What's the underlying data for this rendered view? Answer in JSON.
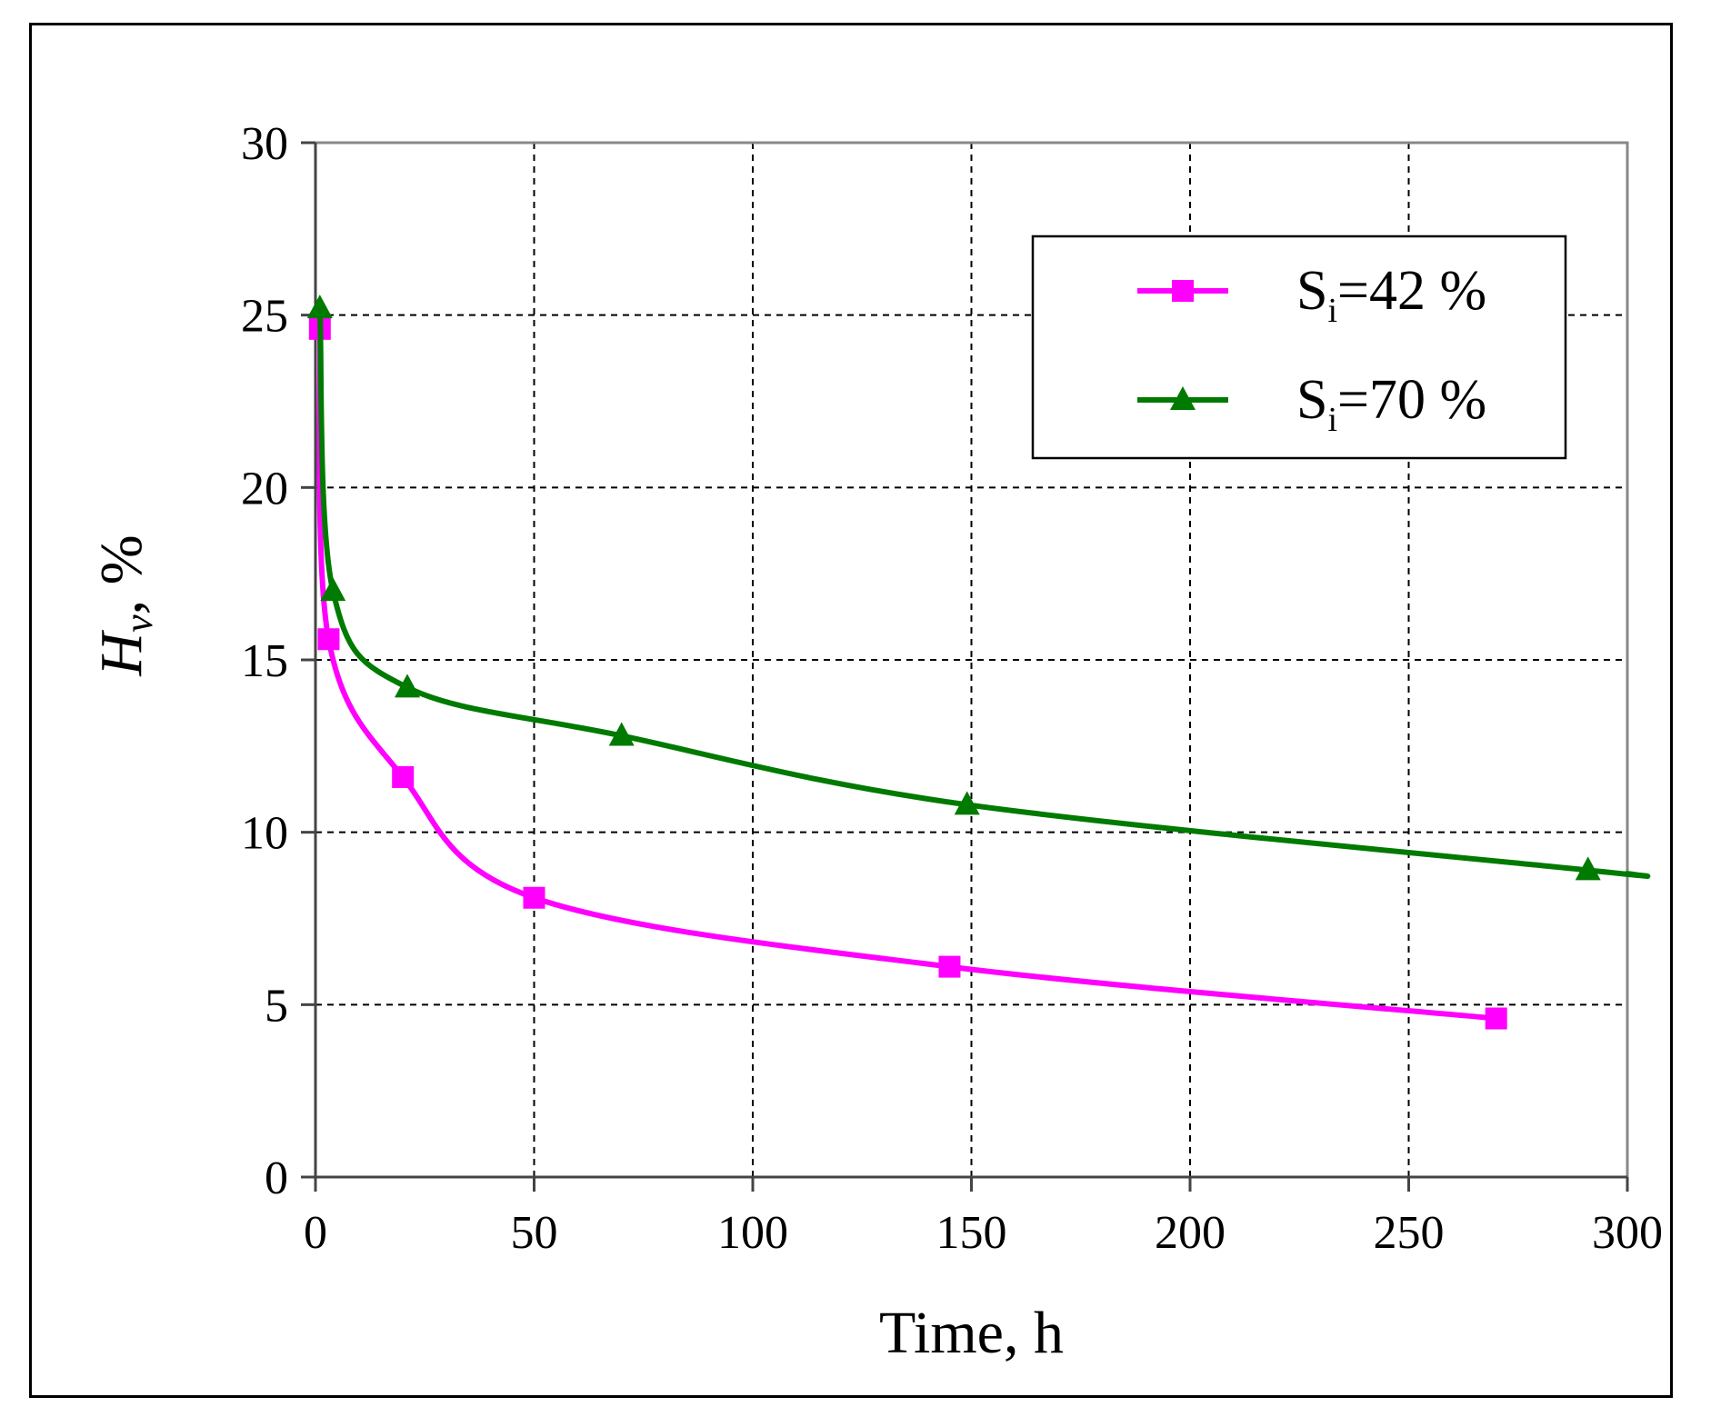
{
  "chart_data": {
    "type": "line",
    "title": "",
    "xlabel": "Time, h",
    "ylabel": {
      "main": "H",
      "subscript": "v",
      "suffix": ", %"
    },
    "xlim": [
      0,
      300
    ],
    "ylim": [
      0,
      30
    ],
    "xticks": [
      0,
      50,
      100,
      150,
      200,
      250,
      300
    ],
    "yticks": [
      0,
      5,
      10,
      15,
      20,
      25,
      30
    ],
    "grid": true,
    "legend_position": "top-right",
    "series": [
      {
        "name": "Si=42 %",
        "label_main": "S",
        "label_sub": "i",
        "label_rest": "=42 %",
        "color": "#ff00ff",
        "marker": "square",
        "x": [
          1,
          3,
          20,
          50,
          145,
          270
        ],
        "y": [
          24.6,
          15.6,
          11.6,
          8.1,
          6.1,
          4.6
        ]
      },
      {
        "name": "Si=70 %",
        "label_main": "S",
        "label_sub": "i",
        "label_rest": "=70 %",
        "color": "#007a00",
        "marker": "triangle",
        "x": [
          1,
          4,
          21,
          70,
          149,
          291,
          300
        ],
        "y": [
          25.2,
          17.0,
          14.2,
          12.8,
          10.8,
          8.9,
          8.8
        ]
      }
    ]
  }
}
